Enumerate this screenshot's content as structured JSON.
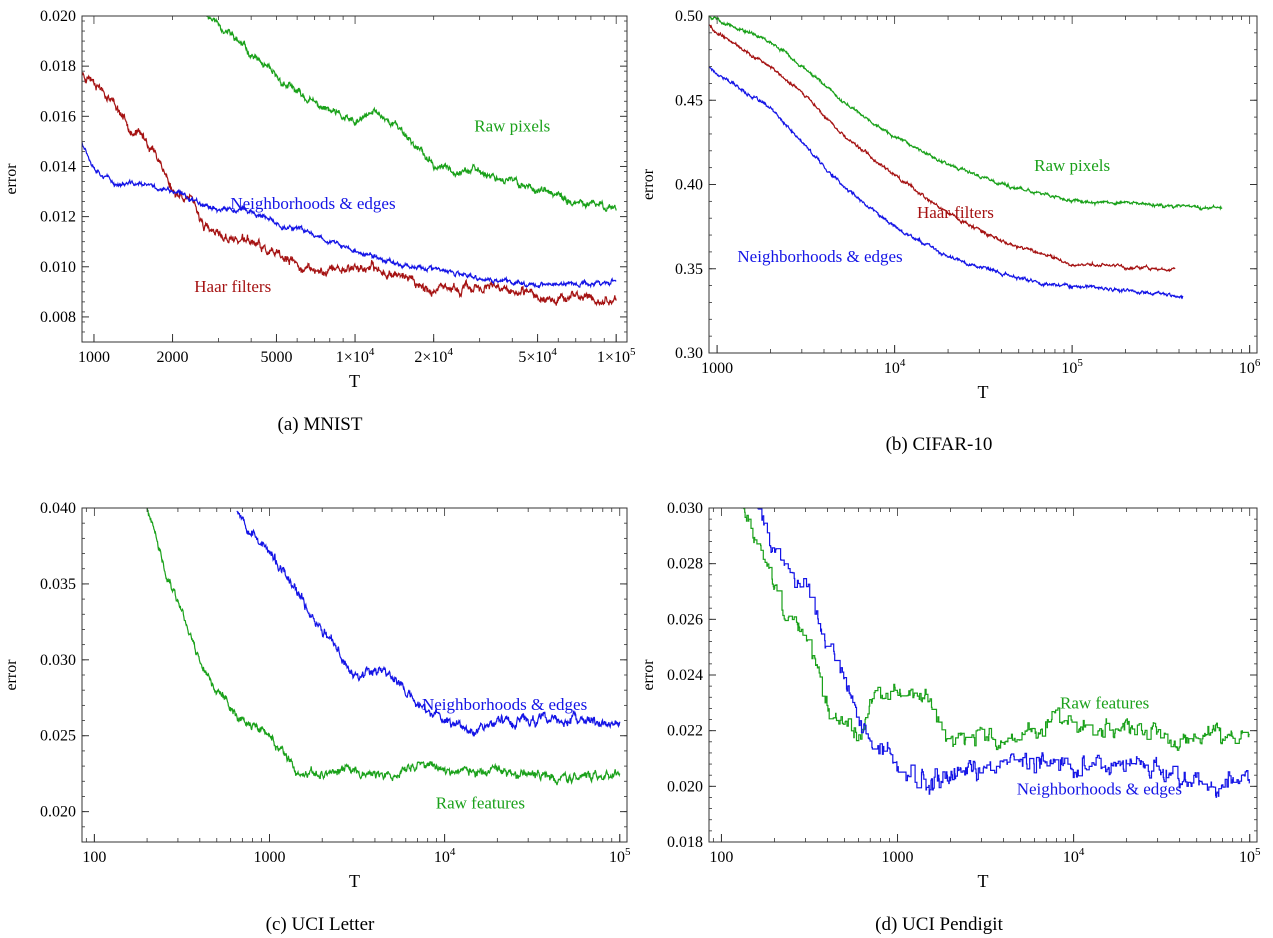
{
  "colors": {
    "green": "#1aa11a",
    "red": "#a51212",
    "blue": "#1414e6"
  },
  "chart_data": [
    {
      "id": "a",
      "caption": "(a) MNIST",
      "type": "line",
      "xscale": "log",
      "xlim": [
        900,
        110000
      ],
      "ylim": [
        0.007,
        0.02
      ],
      "xlabel": "T",
      "ylabel": "error",
      "xticks": [
        {
          "v": 1000,
          "label": "1000"
        },
        {
          "v": 2000,
          "label": "2000"
        },
        {
          "v": 5000,
          "label": "5000"
        },
        {
          "v": 10000,
          "label": "1×10",
          "sup": "4"
        },
        {
          "v": 20000,
          "label": "2×10",
          "sup": "4"
        },
        {
          "v": 50000,
          "label": "5×10",
          "sup": "4"
        },
        {
          "v": 100000,
          "label": "1×10",
          "sup": "5"
        }
      ],
      "yticks": [
        {
          "v": 0.008,
          "label": "0.008"
        },
        {
          "v": 0.01,
          "label": "0.010"
        },
        {
          "v": 0.012,
          "label": "0.012"
        },
        {
          "v": 0.014,
          "label": "0.014"
        },
        {
          "v": 0.016,
          "label": "0.016"
        },
        {
          "v": 0.018,
          "label": "0.018"
        },
        {
          "v": 0.02,
          "label": "0.020"
        }
      ],
      "series": [
        {
          "name": "Raw pixels",
          "color": "green",
          "noise": 0.00018,
          "seed": 11,
          "x": [
            2700,
            3000,
            4000,
            5000,
            7000,
            10000,
            12000,
            15000,
            20000,
            30000,
            50000,
            70000,
            100000
          ],
          "y": [
            0.0201,
            0.0197,
            0.0185,
            0.0175,
            0.0165,
            0.0157,
            0.0162,
            0.0155,
            0.014,
            0.0138,
            0.0131,
            0.0125,
            0.0124
          ]
        },
        {
          "name": "Haar filters",
          "color": "red",
          "noise": 0.00022,
          "seed": 23,
          "x": [
            900,
            1000,
            1100,
            1200,
            1400,
            1600,
            1800,
            2000,
            2300,
            2700,
            3000,
            4000,
            5000,
            7000,
            10000,
            15000,
            20000,
            30000,
            50000,
            70000,
            100000
          ],
          "y": [
            0.0177,
            0.0175,
            0.017,
            0.0165,
            0.0155,
            0.015,
            0.0142,
            0.013,
            0.0128,
            0.0115,
            0.0112,
            0.011,
            0.0104,
            0.0098,
            0.01,
            0.0097,
            0.009,
            0.0092,
            0.0088,
            0.0088,
            0.0086
          ]
        },
        {
          "name": "Neighborhoods & edges",
          "color": "blue",
          "noise": 0.00012,
          "seed": 37,
          "x": [
            900,
            1000,
            1200,
            1500,
            2000,
            3000,
            4000,
            5000,
            7000,
            10000,
            15000,
            20000,
            30000,
            50000,
            70000,
            100000
          ],
          "y": [
            0.015,
            0.014,
            0.0133,
            0.0133,
            0.013,
            0.0123,
            0.0122,
            0.0117,
            0.0113,
            0.0106,
            0.0101,
            0.0099,
            0.0095,
            0.0093,
            0.0093,
            0.0094
          ]
        }
      ],
      "annotations": [
        {
          "text": "Raw pixels",
          "color": "green",
          "x": 40000,
          "y": 0.0154
        },
        {
          "text": "Neighborhoods & edges",
          "color": "blue",
          "x": 6900,
          "y": 0.0123
        },
        {
          "text": "Haar filters",
          "color": "red",
          "x": 3400,
          "y": 0.009
        }
      ]
    },
    {
      "id": "b",
      "caption": "(b) CIFAR-10",
      "type": "line",
      "xscale": "log",
      "xlim": [
        900,
        1100000
      ],
      "ylim": [
        0.3,
        0.5
      ],
      "xlabel": "T",
      "ylabel": "error",
      "xticks": [
        {
          "v": 1000,
          "label": "1000"
        },
        {
          "v": 10000,
          "label": "10",
          "sup": "4"
        },
        {
          "v": 100000,
          "label": "10",
          "sup": "5"
        },
        {
          "v": 1000000,
          "label": "10",
          "sup": "6"
        }
      ],
      "yticks": [
        {
          "v": 0.3,
          "label": "0.30"
        },
        {
          "v": 0.35,
          "label": "0.35"
        },
        {
          "v": 0.4,
          "label": "0.40"
        },
        {
          "v": 0.45,
          "label": "0.45"
        },
        {
          "v": 0.5,
          "label": "0.50"
        }
      ],
      "series": [
        {
          "name": "Raw pixels",
          "color": "green",
          "noise": 0.0012,
          "seed": 5,
          "x": [
            900,
            1000,
            2000,
            3000,
            5000,
            10000,
            20000,
            40000,
            70000,
            100000,
            200000,
            400000,
            700000
          ],
          "y": [
            0.5,
            0.498,
            0.485,
            0.47,
            0.45,
            0.428,
            0.412,
            0.4,
            0.394,
            0.39,
            0.389,
            0.387,
            0.386
          ]
        },
        {
          "name": "Haar filters",
          "color": "red",
          "noise": 0.0012,
          "seed": 9,
          "x": [
            900,
            1000,
            2000,
            3000,
            5000,
            10000,
            20000,
            40000,
            70000,
            100000,
            200000,
            380000
          ],
          "y": [
            0.495,
            0.49,
            0.47,
            0.455,
            0.43,
            0.405,
            0.383,
            0.366,
            0.358,
            0.353,
            0.351,
            0.349
          ]
        },
        {
          "name": "Neighborhoods & edges",
          "color": "blue",
          "noise": 0.0012,
          "seed": 17,
          "x": [
            900,
            1000,
            2000,
            3000,
            5000,
            10000,
            20000,
            40000,
            70000,
            100000,
            200000,
            420000
          ],
          "y": [
            0.47,
            0.466,
            0.445,
            0.425,
            0.4,
            0.375,
            0.357,
            0.347,
            0.341,
            0.34,
            0.337,
            0.334
          ]
        }
      ],
      "annotations": [
        {
          "text": "Raw pixels",
          "color": "green",
          "x": 100000,
          "y": 0.408
        },
        {
          "text": "Haar filters",
          "color": "red",
          "x": 22000,
          "y": 0.38
        },
        {
          "text": "Neighborhoods & edges",
          "color": "blue",
          "x": 3800,
          "y": 0.354
        }
      ]
    },
    {
      "id": "c",
      "caption": "(c) UCI Letter",
      "type": "line",
      "xscale": "log",
      "xlim": [
        85,
        110000
      ],
      "ylim": [
        0.018,
        0.04
      ],
      "xlabel": "T",
      "ylabel": "error",
      "xticks": [
        {
          "v": 100,
          "label": "100"
        },
        {
          "v": 1000,
          "label": "1000"
        },
        {
          "v": 10000,
          "label": "10",
          "sup": "4"
        },
        {
          "v": 100000,
          "label": "10",
          "sup": "5"
        }
      ],
      "yticks": [
        {
          "v": 0.02,
          "label": "0.020"
        },
        {
          "v": 0.025,
          "label": "0.025"
        },
        {
          "v": 0.03,
          "label": "0.030"
        },
        {
          "v": 0.035,
          "label": "0.035"
        },
        {
          "v": 0.04,
          "label": "0.040"
        }
      ],
      "series": [
        {
          "name": "Raw features",
          "color": "green",
          "noise": 0.00035,
          "seed": 41,
          "x": [
            200,
            250,
            300,
            400,
            500,
            700,
            1000,
            1500,
            2000,
            3000,
            5000,
            7000,
            10000,
            20000,
            50000,
            100000
          ],
          "y": [
            0.04,
            0.036,
            0.034,
            0.03,
            0.028,
            0.026,
            0.025,
            0.0222,
            0.0225,
            0.0228,
            0.0222,
            0.0232,
            0.0228,
            0.0225,
            0.0222,
            0.0225
          ]
        },
        {
          "name": "Neighborhoods & edges",
          "color": "blue",
          "noise": 0.0004,
          "seed": 53,
          "x": [
            650,
            800,
            1000,
            1500,
            2000,
            3000,
            4000,
            5000,
            7000,
            10000,
            15000,
            20000,
            50000,
            100000
          ],
          "y": [
            0.04,
            0.0385,
            0.037,
            0.034,
            0.032,
            0.029,
            0.0295,
            0.029,
            0.027,
            0.026,
            0.0255,
            0.026,
            0.026,
            0.0258
          ]
        }
      ],
      "annotations": [
        {
          "text": "Neighborhoods & edges",
          "color": "blue",
          "x": 22000,
          "y": 0.0267
        },
        {
          "text": "Raw features",
          "color": "green",
          "x": 16000,
          "y": 0.0202
        }
      ]
    },
    {
      "id": "d",
      "caption": "(d) UCI Pendigit",
      "type": "line",
      "xscale": "log",
      "xlim": [
        85,
        110000
      ],
      "ylim": [
        0.018,
        0.03
      ],
      "xlabel": "T",
      "ylabel": "error",
      "xticks": [
        {
          "v": 100,
          "label": "100"
        },
        {
          "v": 1000,
          "label": "1000"
        },
        {
          "v": 10000,
          "label": "10",
          "sup": "4"
        },
        {
          "v": 100000,
          "label": "10",
          "sup": "5"
        }
      ],
      "yticks": [
        {
          "v": 0.018,
          "label": "0.018"
        },
        {
          "v": 0.02,
          "label": "0.020"
        },
        {
          "v": 0.022,
          "label": "0.022"
        },
        {
          "v": 0.024,
          "label": "0.024"
        },
        {
          "v": 0.026,
          "label": "0.026"
        },
        {
          "v": 0.028,
          "label": "0.028"
        },
        {
          "v": 0.03,
          "label": "0.030"
        }
      ],
      "series": [
        {
          "name": "Raw features",
          "color": "green",
          "noise": 0.00035,
          "seed": 61,
          "steps": true,
          "x": [
            130,
            150,
            200,
            250,
            300,
            400,
            500,
            600,
            700,
            800,
            1000,
            1500,
            2000,
            3000,
            5000,
            8000,
            10000,
            20000,
            50000,
            100000
          ],
          "y": [
            0.03,
            0.029,
            0.027,
            0.026,
            0.0255,
            0.023,
            0.0222,
            0.022,
            0.023,
            0.0235,
            0.0235,
            0.023,
            0.0215,
            0.0218,
            0.0218,
            0.0225,
            0.0222,
            0.022,
            0.0217,
            0.0218
          ]
        },
        {
          "name": "Neighborhoods & edges",
          "color": "blue",
          "noise": 0.0004,
          "seed": 71,
          "steps": true,
          "x": [
            160,
            200,
            250,
            300,
            350,
            400,
            500,
            600,
            800,
            1000,
            1500,
            2000,
            3000,
            5000,
            10000,
            20000,
            50000,
            100000
          ],
          "y": [
            0.03,
            0.0285,
            0.0275,
            0.0275,
            0.026,
            0.025,
            0.024,
            0.022,
            0.0215,
            0.0205,
            0.0202,
            0.0205,
            0.0208,
            0.0208,
            0.0207,
            0.0207,
            0.0202,
            0.0203
          ]
        }
      ],
      "annotations": [
        {
          "text": "Raw features",
          "color": "green",
          "x": 15000,
          "y": 0.0228
        },
        {
          "text": "Neighborhoods & edges",
          "color": "blue",
          "x": 14000,
          "y": 0.0197
        }
      ]
    }
  ]
}
